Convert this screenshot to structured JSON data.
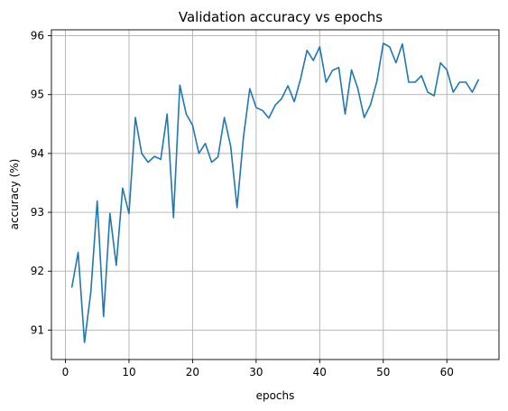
{
  "chart_data": {
    "type": "line",
    "title": "Validation accuracy vs epochs",
    "xlabel": "epochs",
    "ylabel": "accuracy (%)",
    "xlim": [
      -2.2,
      68.2
    ],
    "ylim": [
      90.5,
      96.1
    ],
    "xticks": [
      0,
      10,
      20,
      30,
      40,
      50,
      60
    ],
    "yticks": [
      91,
      92,
      93,
      94,
      95,
      96
    ],
    "grid": true,
    "series": [
      {
        "color": "#1f77b4",
        "x": [
          1,
          2,
          3,
          4,
          5,
          6,
          7,
          8,
          9,
          10,
          11,
          12,
          13,
          14,
          15,
          16,
          17,
          18,
          19,
          20,
          21,
          22,
          23,
          24,
          25,
          26,
          27,
          28,
          29,
          30,
          31,
          32,
          33,
          34,
          35,
          36,
          37,
          38,
          39,
          40,
          41,
          42,
          43,
          44,
          45,
          46,
          47,
          48,
          49,
          50,
          51,
          52,
          53,
          54,
          55,
          56,
          57,
          58,
          59,
          60,
          61,
          62,
          63,
          64,
          65
        ],
        "values": [
          91.72,
          92.32,
          90.79,
          91.65,
          93.19,
          91.23,
          92.98,
          92.1,
          93.41,
          92.98,
          94.61,
          94.0,
          93.85,
          93.95,
          93.9,
          94.67,
          92.91,
          95.16,
          94.67,
          94.48,
          94.0,
          94.17,
          93.85,
          93.94,
          94.61,
          94.12,
          93.08,
          94.27,
          95.1,
          94.78,
          94.73,
          94.6,
          94.82,
          94.93,
          95.15,
          94.88,
          95.27,
          95.75,
          95.58,
          95.81,
          95.21,
          95.41,
          95.46,
          94.67,
          95.42,
          95.1,
          94.61,
          94.83,
          95.23,
          95.87,
          95.81,
          95.54,
          95.86,
          95.21,
          95.21,
          95.32,
          95.04,
          94.98,
          95.54,
          95.42,
          95.04,
          95.21,
          95.21,
          95.04,
          95.26
        ]
      }
    ]
  }
}
